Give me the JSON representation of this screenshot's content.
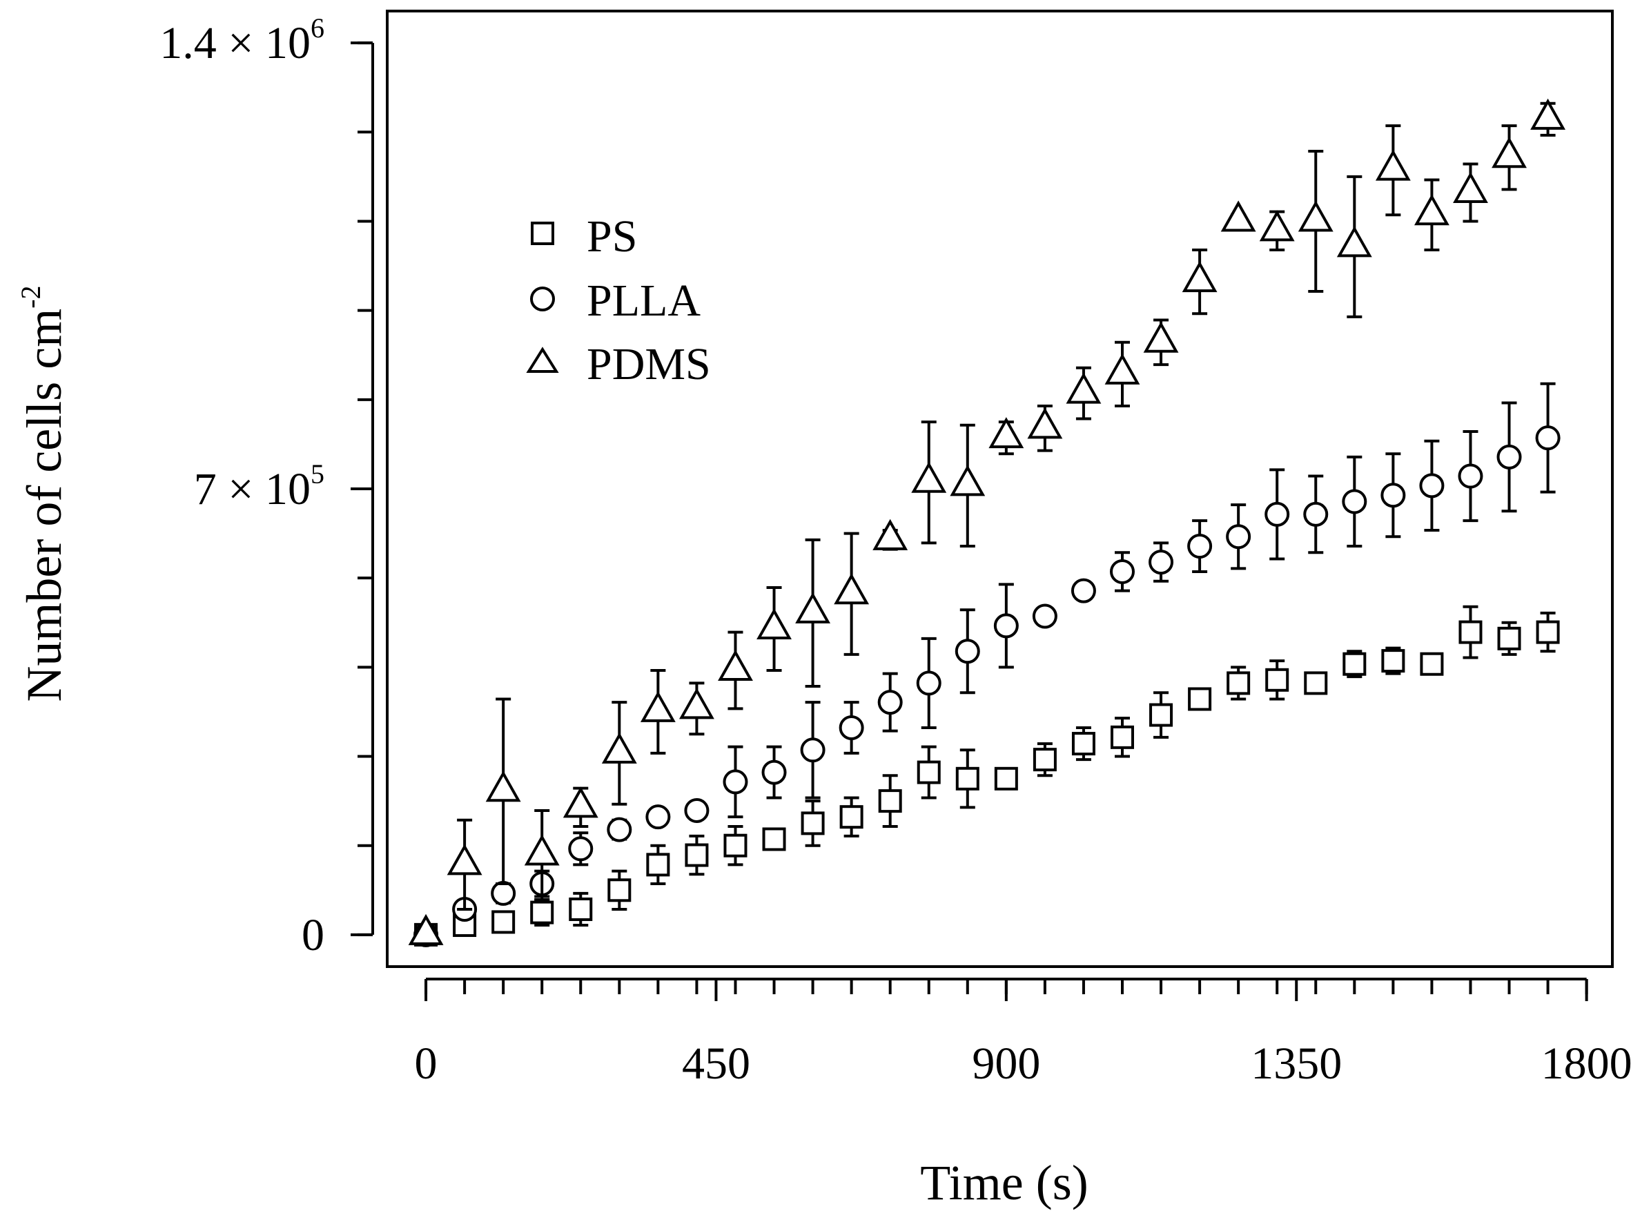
{
  "chart_data": {
    "type": "scatter",
    "title": "",
    "xlabel": "Time (s)",
    "ylabel": "Number of cells cm",
    "ylabel_sup": "-2",
    "xlim": [
      -60,
      1840
    ],
    "ylim": [
      -50000,
      1450000
    ],
    "xticks": [
      {
        "value": 0,
        "label": "0"
      },
      {
        "value": 450,
        "label": "450"
      },
      {
        "value": 900,
        "label": "900"
      },
      {
        "value": 1350,
        "label": "1350"
      },
      {
        "value": 1800,
        "label": "1800"
      }
    ],
    "yticks": [
      {
        "value": 0,
        "label": "0",
        "sup": ""
      },
      {
        "value": 700000,
        "label": "7 × 10",
        "sup": "5"
      },
      {
        "value": 1400000,
        "label": "1.4 × 10",
        "sup": "6"
      }
    ],
    "x_minor_step": 60,
    "y_minor_step": 140000,
    "legend": {
      "position": "upper-left"
    },
    "series": [
      {
        "name": "PS",
        "marker": "square",
        "x": [
          0,
          60,
          120,
          180,
          240,
          300,
          360,
          420,
          480,
          540,
          600,
          660,
          720,
          780,
          840,
          900,
          960,
          1020,
          1080,
          1140,
          1200,
          1260,
          1320,
          1380,
          1440,
          1500,
          1560,
          1620,
          1680,
          1740
        ],
        "y": [
          0,
          15000,
          20000,
          35000,
          40000,
          70000,
          110000,
          125000,
          140000,
          150000,
          175000,
          185000,
          210000,
          255000,
          245000,
          245000,
          275000,
          300000,
          310000,
          345000,
          370000,
          395000,
          400000,
          395000,
          425000,
          430000,
          425000,
          475000,
          465000,
          475000
        ],
        "err": [
          3000,
          15000,
          10000,
          20000,
          25000,
          30000,
          30000,
          30000,
          30000,
          15000,
          35000,
          30000,
          40000,
          40000,
          45000,
          15000,
          25000,
          25000,
          30000,
          35000,
          10000,
          25000,
          30000,
          15000,
          20000,
          20000,
          10000,
          40000,
          25000,
          30000
        ]
      },
      {
        "name": "PLLA",
        "marker": "circle",
        "x": [
          0,
          60,
          120,
          180,
          240,
          300,
          360,
          420,
          480,
          540,
          600,
          660,
          720,
          780,
          840,
          900,
          960,
          1020,
          1080,
          1140,
          1200,
          1260,
          1320,
          1380,
          1440,
          1500,
          1560,
          1620,
          1680,
          1740
        ],
        "y": [
          0,
          40000,
          65000,
          80000,
          135000,
          165000,
          185000,
          195000,
          240000,
          255000,
          290000,
          325000,
          365000,
          395000,
          445000,
          485000,
          500000,
          540000,
          570000,
          585000,
          610000,
          625000,
          660000,
          660000,
          680000,
          690000,
          705000,
          720000,
          750000,
          780000
        ],
        "err": [
          5000,
          10000,
          15000,
          20000,
          25000,
          15000,
          10000,
          10000,
          55000,
          40000,
          75000,
          40000,
          45000,
          70000,
          65000,
          65000,
          10000,
          10000,
          30000,
          30000,
          40000,
          50000,
          70000,
          60000,
          70000,
          65000,
          70000,
          70000,
          85000,
          85000
        ]
      },
      {
        "name": "PDMS",
        "marker": "triangle",
        "x": [
          0,
          60,
          120,
          180,
          240,
          300,
          360,
          420,
          480,
          540,
          600,
          660,
          720,
          780,
          840,
          900,
          960,
          1020,
          1080,
          1140,
          1200,
          1260,
          1320,
          1380,
          1440,
          1500,
          1560,
          1620,
          1680,
          1740
        ],
        "y": [
          0,
          110000,
          225000,
          125000,
          200000,
          285000,
          350000,
          355000,
          415000,
          480000,
          505000,
          535000,
          620000,
          710000,
          705000,
          780000,
          795000,
          850000,
          880000,
          930000,
          1025000,
          1120000,
          1105000,
          1120000,
          1080000,
          1200000,
          1130000,
          1165000,
          1220000,
          1280000
        ],
        "err": [
          5000,
          70000,
          145000,
          70000,
          30000,
          80000,
          65000,
          40000,
          60000,
          65000,
          115000,
          95000,
          15000,
          95000,
          95000,
          25000,
          35000,
          40000,
          50000,
          35000,
          50000,
          10000,
          30000,
          110000,
          110000,
          70000,
          55000,
          45000,
          50000,
          25000
        ]
      }
    ]
  }
}
